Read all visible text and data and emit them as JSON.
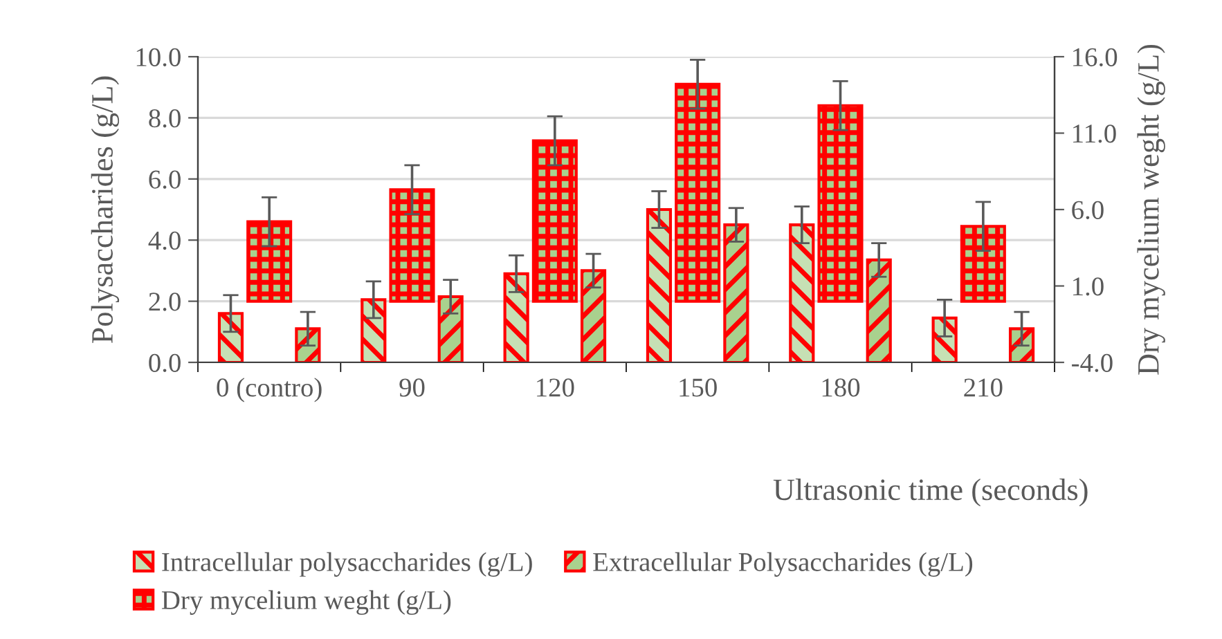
{
  "chart_data": {
    "type": "bar",
    "xlabel": "Ultrasonic time (seconds)",
    "ylabel": "Polysaccharides (g/L)",
    "y2label": "Dry mycelium weght (g/L)",
    "categories": [
      "0 (contro)",
      "90",
      "120",
      "150",
      "180",
      "210"
    ],
    "series": [
      {
        "name": "Intracellular polysaccharides (g/L)",
        "color": "#ff0000",
        "values": [
          1.6,
          2.05,
          2.9,
          5.0,
          4.5,
          1.45
        ],
        "errors": [
          0.6,
          0.6,
          0.6,
          0.6,
          0.6,
          0.6
        ]
      },
      {
        "name": "Extracellular Polysaccharides (g/L)",
        "color": "#ff0000",
        "values": [
          1.1,
          2.15,
          3.0,
          4.5,
          3.35,
          1.1
        ],
        "errors": [
          0.55,
          0.55,
          0.55,
          0.55,
          0.55,
          0.55
        ]
      },
      {
        "name": "Dry mycelium weght (g/L)",
        "color": "#ff0000",
        "axis": "y2",
        "values": [
          5.2,
          7.3,
          10.5,
          14.2,
          12.8,
          4.9
        ],
        "errors": [
          1.6,
          1.6,
          1.6,
          1.6,
          1.6,
          1.6
        ]
      }
    ],
    "ylim": [
      0,
      10
    ],
    "yticks": [
      {
        "value": 0,
        "label": "0.0"
      },
      {
        "value": 2,
        "label": "2.0"
      },
      {
        "value": 4,
        "label": "4.0"
      },
      {
        "value": 6,
        "label": "6.0"
      },
      {
        "value": 8,
        "label": "8.0"
      },
      {
        "value": 10,
        "label": "10.0"
      }
    ],
    "y2lim": [
      -4,
      16
    ],
    "y2ticks": [
      {
        "value": -4,
        "label": "-4.0"
      },
      {
        "value": 1,
        "label": "1.0"
      },
      {
        "value": 6,
        "label": "6.0"
      },
      {
        "value": 11,
        "label": "11.0"
      },
      {
        "value": 16,
        "label": "16.0"
      }
    ],
    "grid": "y",
    "legend": "bottom"
  }
}
